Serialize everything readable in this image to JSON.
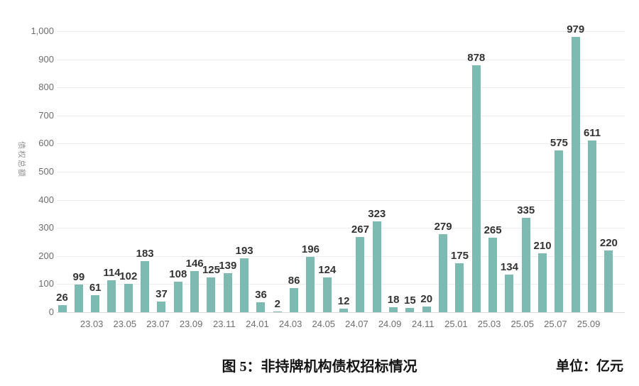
{
  "caption": {
    "text": "图 5：非持牌机构债权招标情况",
    "unit": "单位：亿元"
  },
  "chart_data": {
    "type": "bar",
    "title": "图 5：非持牌机构债权招标情况",
    "unit_label": "单位：亿元",
    "ylabel": "债权总额",
    "ylim": [
      0,
      1000
    ],
    "grid": "horizontal",
    "legend": "none",
    "data_labels": "above each bar",
    "ytick_labels": [
      "0",
      "100",
      "200",
      "300",
      "400",
      "500",
      "600",
      "700",
      "800",
      "900",
      "1,000"
    ],
    "bar_values": [
      26,
      99,
      61,
      114,
      102,
      183,
      37,
      108,
      146,
      125,
      139,
      193,
      36,
      2,
      86,
      196,
      124,
      12,
      267,
      323,
      18,
      15,
      20,
      279,
      175,
      878,
      265,
      134,
      335,
      210,
      575,
      979,
      611,
      220
    ],
    "bar_count": 34,
    "xtick_labels": [
      {
        "label": "23.03",
        "bar_index": 2
      },
      {
        "label": "23.05",
        "bar_index": 4
      },
      {
        "label": "23.07",
        "bar_index": 6
      },
      {
        "label": "23.09",
        "bar_index": 8
      },
      {
        "label": "23.11",
        "bar_index": 10
      },
      {
        "label": "24.01",
        "bar_index": 12
      },
      {
        "label": "24.03",
        "bar_index": 14
      },
      {
        "label": "24.05",
        "bar_index": 16
      },
      {
        "label": "24.07",
        "bar_index": 18
      },
      {
        "label": "24.09",
        "bar_index": 20
      },
      {
        "label": "24.11",
        "bar_index": 22
      },
      {
        "label": "25.01",
        "bar_index": 24
      },
      {
        "label": "25.03",
        "bar_index": 26
      },
      {
        "label": "25.05",
        "bar_index": 28
      },
      {
        "label": "25.07",
        "bar_index": 30
      },
      {
        "label": "25.09",
        "bar_index": 32
      }
    ],
    "colors": {
      "bar": "#7dbab2",
      "grid": "#ebebeb",
      "baseline": "#d9d9d9",
      "value_label": "#333333",
      "tick_label": "#6e6e6e",
      "axis_title": "#8f8f8f",
      "caption_text": "#141414"
    }
  }
}
